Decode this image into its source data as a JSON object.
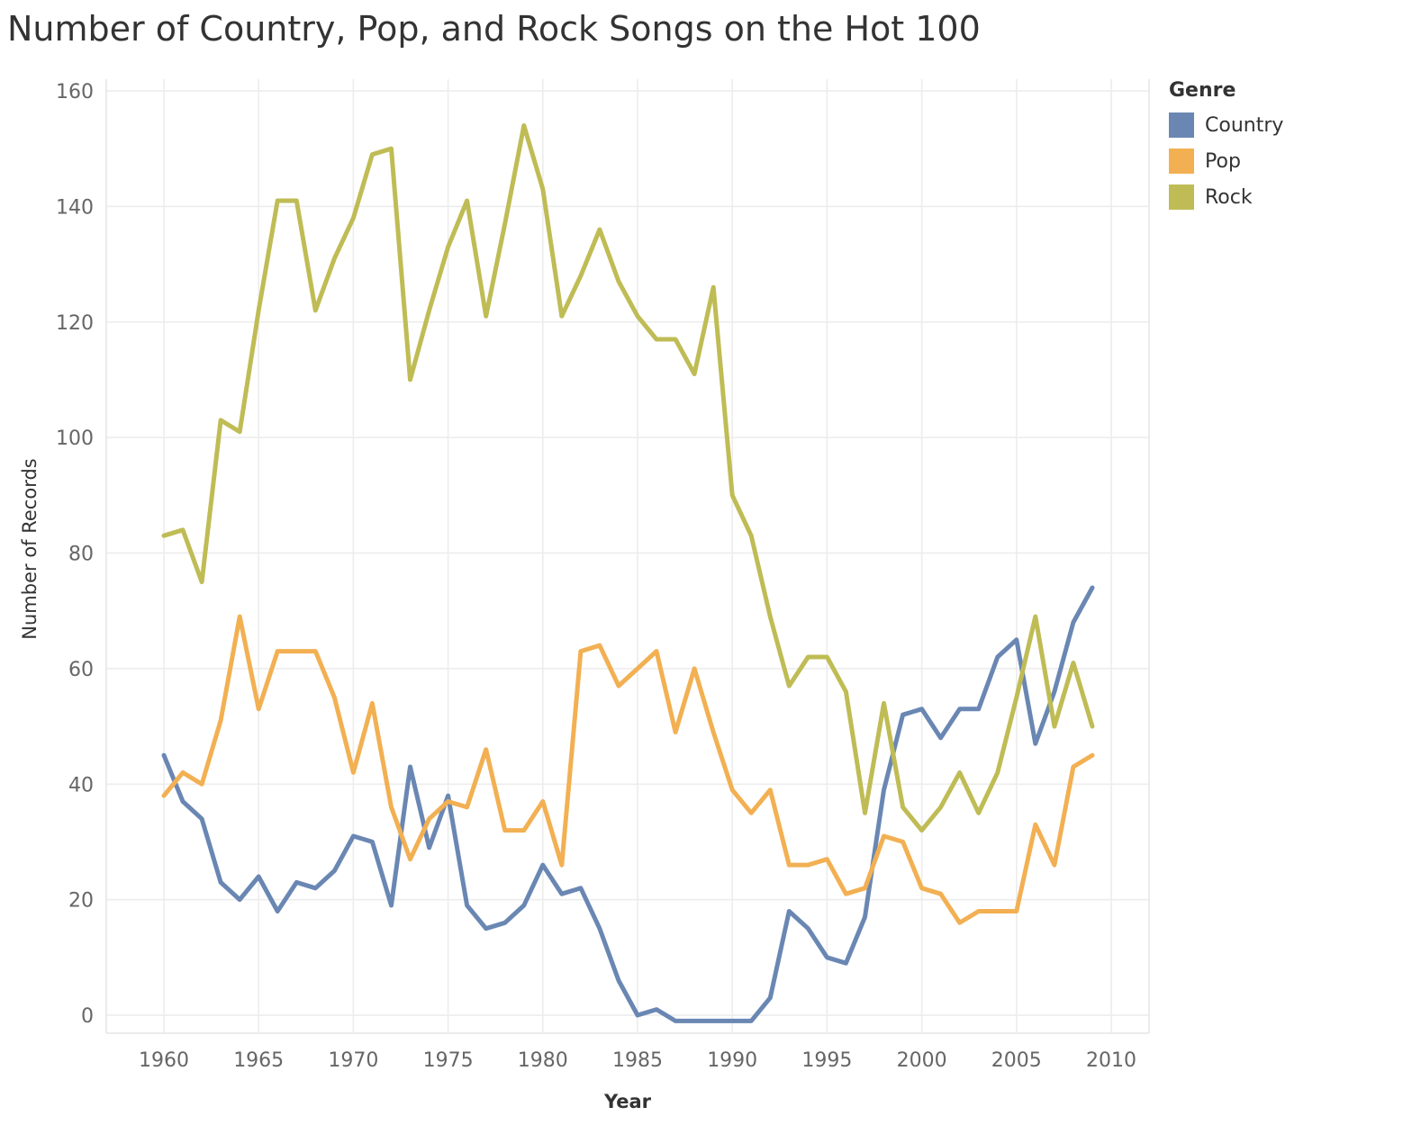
{
  "chart_data": {
    "type": "line",
    "title": "Number of Country, Pop, and Rock Songs on the Hot 100",
    "xlabel": "Year",
    "ylabel": "Number of Records",
    "xlim": [
      1955,
      2012
    ],
    "ylim": [
      -3,
      164
    ],
    "x_ticks": [
      1960,
      1965,
      1970,
      1975,
      1980,
      1985,
      1990,
      1995,
      2000,
      2005,
      2010
    ],
    "y_ticks": [
      0,
      20,
      40,
      60,
      80,
      100,
      120,
      140,
      160
    ],
    "grid": true,
    "legend_title": "Genre",
    "legend_position": "top-right",
    "x": [
      1960,
      1961,
      1962,
      1963,
      1964,
      1965,
      1966,
      1967,
      1968,
      1969,
      1970,
      1971,
      1972,
      1973,
      1974,
      1975,
      1976,
      1977,
      1978,
      1979,
      1980,
      1981,
      1982,
      1983,
      1984,
      1985,
      1986,
      1987,
      1988,
      1989,
      1990,
      1991,
      1992,
      1993,
      1994,
      1995,
      1996,
      1997,
      1998,
      1999,
      2000,
      2001,
      2002,
      2003,
      2004,
      2005,
      2006,
      2007,
      2008,
      2009
    ],
    "series": [
      {
        "name": "Country",
        "color": "#6a87b3",
        "values": [
          45,
          37,
          34,
          23,
          20,
          24,
          18,
          23,
          22,
          25,
          31,
          30,
          19,
          43,
          29,
          38,
          19,
          15,
          16,
          19,
          26,
          21,
          22,
          15,
          6,
          0,
          1,
          -1,
          -1,
          -1,
          -1,
          -1,
          3,
          18,
          15,
          10,
          9,
          17,
          39,
          52,
          53,
          48,
          53,
          53,
          62,
          65,
          47,
          56,
          68,
          74
        ]
      },
      {
        "name": "Pop",
        "color": "#f2b053",
        "values": [
          38,
          42,
          40,
          51,
          69,
          53,
          63,
          63,
          63,
          55,
          42,
          54,
          36,
          27,
          34,
          37,
          36,
          46,
          32,
          32,
          37,
          26,
          63,
          64,
          57,
          60,
          63,
          49,
          60,
          49,
          39,
          35,
          39,
          26,
          26,
          27,
          21,
          22,
          31,
          30,
          22,
          21,
          16,
          18,
          18,
          18,
          33,
          26,
          43,
          45
        ]
      },
      {
        "name": "Rock",
        "color": "#bfbc55",
        "values": [
          83,
          84,
          75,
          103,
          101,
          122,
          141,
          141,
          122,
          131,
          138,
          149,
          150,
          110,
          122,
          133,
          141,
          121,
          137,
          154,
          143,
          121,
          128,
          136,
          127,
          121,
          117,
          117,
          111,
          126,
          90,
          83,
          69,
          57,
          62,
          62,
          56,
          35,
          54,
          36,
          32,
          36,
          42,
          35,
          42,
          55,
          69,
          50,
          61,
          50
        ]
      }
    ]
  }
}
